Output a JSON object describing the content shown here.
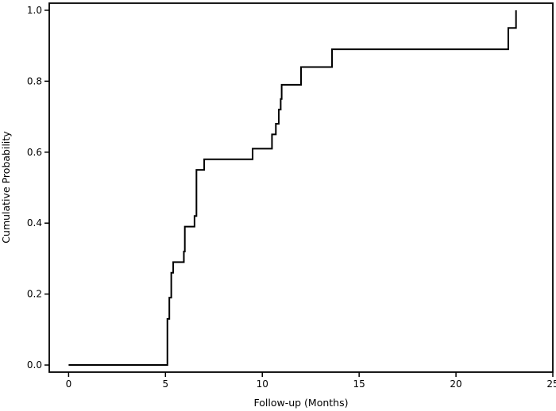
{
  "chart_data": {
    "type": "line",
    "style": "step",
    "title": "",
    "xlabel": "Follow-up (Months)",
    "ylabel": "Cumulative Probability",
    "xlim": [
      -1,
      25
    ],
    "ylim": [
      -0.02,
      1.02
    ],
    "xticks": [
      0,
      5,
      10,
      15,
      20,
      25
    ],
    "yticks": [
      0.0,
      0.2,
      0.4,
      0.6,
      0.8,
      1.0
    ],
    "xtick_labels": [
      "0",
      "5",
      "10",
      "15",
      "20",
      "25"
    ],
    "ytick_labels": [
      "0.0",
      "0.2",
      "0.4",
      "0.6",
      "0.8",
      "1.0"
    ],
    "grid": false,
    "series": [
      {
        "color": "#000000",
        "x": [
          0,
          5.1,
          5.1,
          5.2,
          5.3,
          5.4,
          5.95,
          6.0,
          6.5,
          6.6,
          7.0,
          9.5,
          10.5,
          10.7,
          10.85,
          10.95,
          11.0,
          12.0,
          13.6,
          22.7,
          23.1
        ],
        "y": [
          0.0,
          0.0,
          0.13,
          0.19,
          0.26,
          0.29,
          0.32,
          0.39,
          0.42,
          0.55,
          0.58,
          0.61,
          0.65,
          0.68,
          0.72,
          0.75,
          0.79,
          0.84,
          0.89,
          0.95,
          1.0
        ]
      }
    ]
  }
}
